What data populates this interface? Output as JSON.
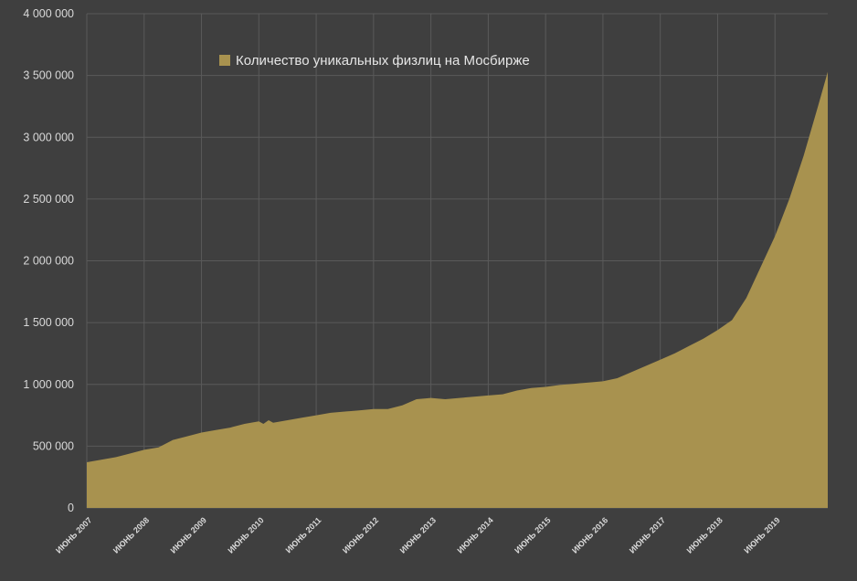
{
  "chart_data": {
    "type": "area",
    "title": "",
    "xlabel": "",
    "ylabel": "",
    "ylim": [
      0,
      4000000
    ],
    "y_tick_labels": [
      "0",
      "500 000",
      "1 000 000",
      "1 500 000",
      "2 000 000",
      "2 500 000",
      "3 000 000",
      "3 500 000",
      "4 000 000"
    ],
    "y_ticks": [
      0,
      500000,
      1000000,
      1500000,
      2000000,
      2500000,
      3000000,
      3500000,
      4000000
    ],
    "x_range": [
      2007.0,
      2019.92
    ],
    "x_tick_labels": [
      "ИЮНЬ 2007",
      "ИЮНЬ 2008",
      "ИЮНЬ 2009",
      "ИЮНЬ 2010",
      "ИЮНЬ 2011",
      "ИЮНЬ 2012",
      "ИЮНЬ 2013",
      "ИЮНЬ 2014",
      "ИЮНЬ 2015",
      "ИЮНЬ 2016",
      "ИЮНЬ 2017",
      "ИЮНЬ 2018",
      "ИЮНЬ 2019"
    ],
    "x_ticks": [
      2007,
      2008,
      2009,
      2010,
      2011,
      2012,
      2013,
      2014,
      2015,
      2016,
      2017,
      2018,
      2019
    ],
    "grid": true,
    "legend_position": "top-left",
    "series": [
      {
        "name": "Количество уникальных физлиц на Мосбирже",
        "color": "#a8924f",
        "x": [
          2007.0,
          2007.25,
          2007.5,
          2007.75,
          2008.0,
          2008.25,
          2008.5,
          2008.75,
          2009.0,
          2009.25,
          2009.5,
          2009.75,
          2010.0,
          2010.08,
          2010.17,
          2010.25,
          2010.5,
          2010.75,
          2011.0,
          2011.25,
          2011.5,
          2011.75,
          2012.0,
          2012.25,
          2012.5,
          2012.75,
          2013.0,
          2013.25,
          2013.5,
          2013.75,
          2014.0,
          2014.25,
          2014.5,
          2014.75,
          2015.0,
          2015.25,
          2015.5,
          2015.75,
          2016.0,
          2016.25,
          2016.5,
          2016.75,
          2017.0,
          2017.25,
          2017.5,
          2017.75,
          2018.0,
          2018.25,
          2018.5,
          2018.75,
          2019.0,
          2019.25,
          2019.5,
          2019.75,
          2019.92
        ],
        "values": [
          370000,
          390000,
          410000,
          440000,
          470000,
          490000,
          550000,
          580000,
          610000,
          630000,
          650000,
          680000,
          700000,
          680000,
          710000,
          690000,
          710000,
          730000,
          750000,
          770000,
          780000,
          790000,
          800000,
          800000,
          830000,
          880000,
          890000,
          880000,
          890000,
          900000,
          910000,
          920000,
          950000,
          970000,
          980000,
          995000,
          1005000,
          1015000,
          1025000,
          1050000,
          1100000,
          1150000,
          1200000,
          1250000,
          1310000,
          1370000,
          1440000,
          1520000,
          1700000,
          1950000,
          2200000,
          2500000,
          2850000,
          3250000,
          3530000
        ]
      }
    ]
  }
}
